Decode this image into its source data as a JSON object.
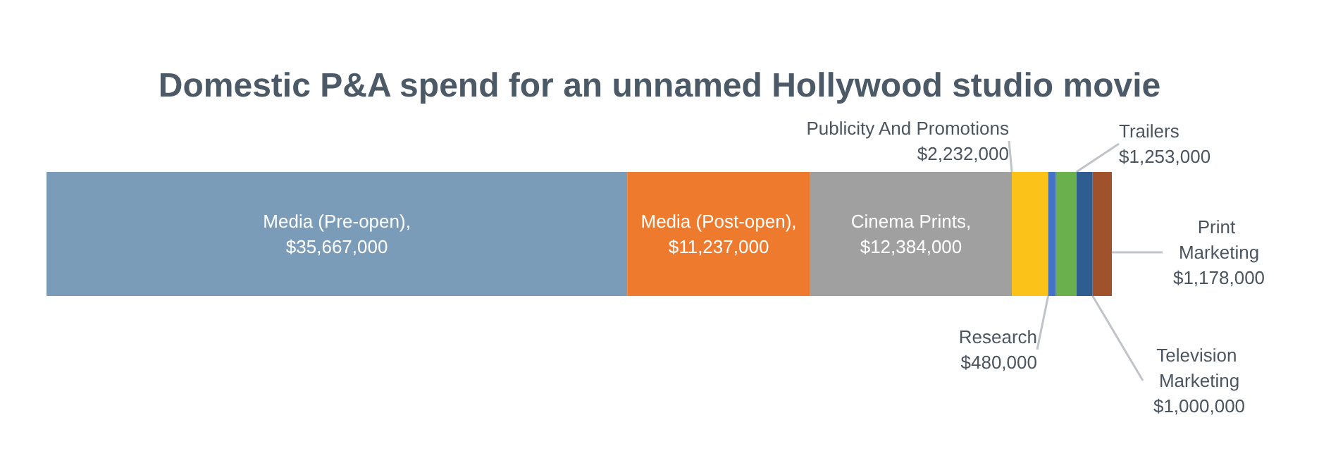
{
  "chart_data": {
    "type": "bar",
    "orientation": "horizontal",
    "stacked": true,
    "title": "Domestic P&A spend for an unnamed Hollywood studio movie",
    "categories": [
      null
    ],
    "series": [
      {
        "name": "Media (Pre-open),",
        "color": "#7a9cb8",
        "values": [
          35667000
        ],
        "value_labels": [
          "$35,667,000"
        ]
      },
      {
        "name": "Media (Post-open),",
        "color": "#ee7a2e",
        "values": [
          11237000
        ],
        "value_labels": [
          "$11,237,000"
        ]
      },
      {
        "name": "Cinema Prints,",
        "color": "#a0a0a0",
        "values": [
          12384000
        ],
        "value_labels": [
          "$12,384,000"
        ]
      },
      {
        "name": "Publicity And Promotions",
        "color": "#fbc21a",
        "values": [
          2232000
        ],
        "value_labels": [
          "$2,232,000"
        ]
      },
      {
        "name": "Research",
        "color": "#4472c4",
        "values": [
          480000
        ],
        "value_labels": [
          "$480,000"
        ]
      },
      {
        "name": "Trailers",
        "color": "#6ab04c",
        "values": [
          1253000
        ],
        "value_labels": [
          "$1,253,000"
        ]
      },
      {
        "name": "Television Marketing",
        "color": "#2f5d8f",
        "values": [
          1000000
        ],
        "value_labels": [
          "$1,000,000"
        ]
      },
      {
        "name": "Print Marketing",
        "color": "#a0522d",
        "values": [
          1178000
        ],
        "value_labels": [
          "$1,178,000"
        ]
      }
    ],
    "legend": false,
    "grid": false
  }
}
